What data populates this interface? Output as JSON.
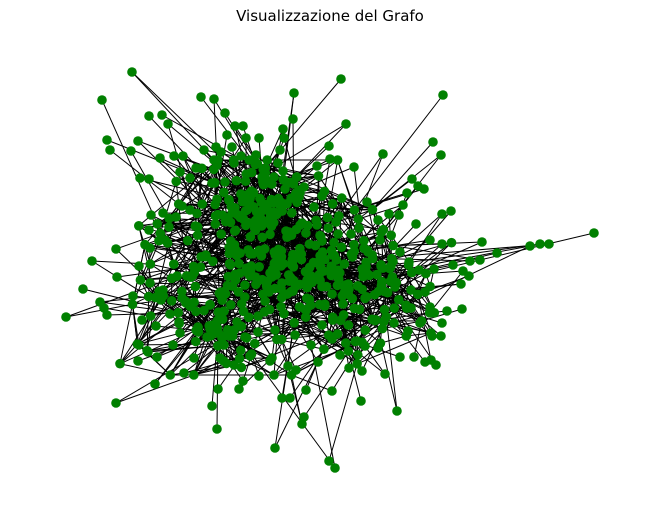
{
  "title": "Visualizzazione del Grafo",
  "colors": {
    "background": "#ffffff",
    "node": "#008000",
    "edge": "#000000",
    "title_text": "#000000"
  },
  "graph": {
    "layout": "force-directed",
    "node_shape": "circle",
    "node_labels_shown": false,
    "axes_shown": false
  }
}
